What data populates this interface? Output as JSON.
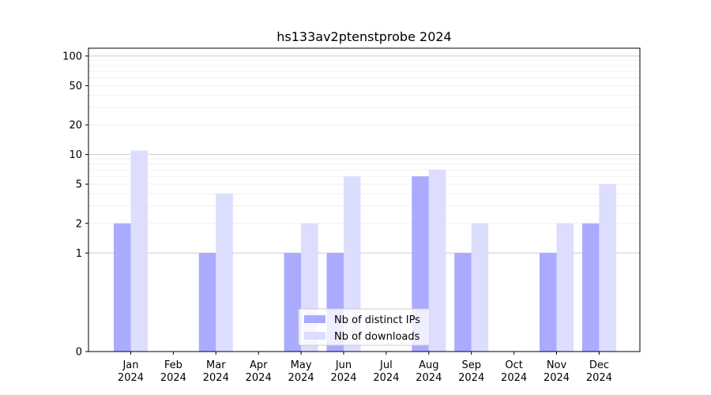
{
  "chart_data": {
    "type": "bar",
    "title": "hs133av2ptenstprobe 2024",
    "xlabel": "",
    "ylabel": "",
    "y_scale": "symlog",
    "ylim": [
      0,
      120
    ],
    "y_ticks": [
      0,
      1,
      2,
      5,
      10,
      20,
      50,
      100
    ],
    "categories": [
      [
        "Jan",
        "2024"
      ],
      [
        "Feb",
        "2024"
      ],
      [
        "Mar",
        "2024"
      ],
      [
        "Apr",
        "2024"
      ],
      [
        "May",
        "2024"
      ],
      [
        "Jun",
        "2024"
      ],
      [
        "Jul",
        "2024"
      ],
      [
        "Aug",
        "2024"
      ],
      [
        "Sep",
        "2024"
      ],
      [
        "Oct",
        "2024"
      ],
      [
        "Nov",
        "2024"
      ],
      [
        "Dec",
        "2024"
      ]
    ],
    "series": [
      {
        "name": "Nb of distinct IPs",
        "color": "#aaaaff",
        "values": [
          2,
          0,
          1,
          0,
          1,
          1,
          0,
          6,
          1,
          0,
          1,
          2
        ]
      },
      {
        "name": "Nb of downloads",
        "color": "#ddddff",
        "values": [
          11,
          0,
          4,
          0,
          2,
          6,
          0,
          7,
          2,
          0,
          2,
          5
        ]
      }
    ],
    "legend_position": "lower-center",
    "grid": true
  }
}
